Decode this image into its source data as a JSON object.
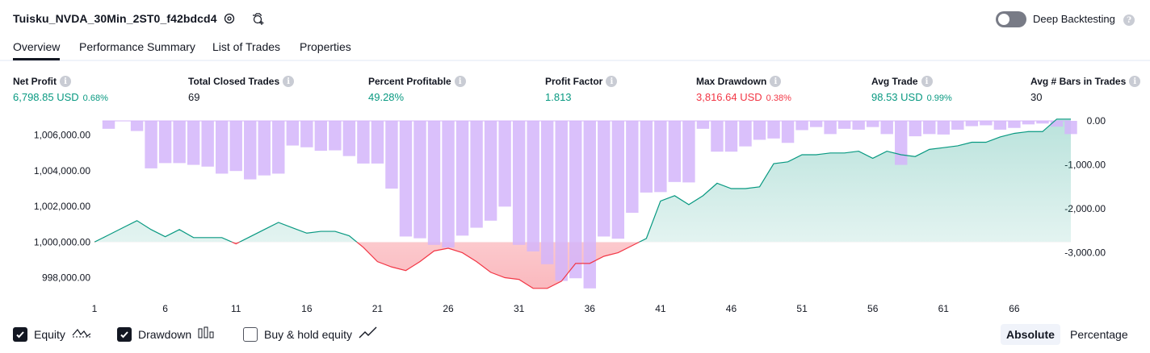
{
  "header": {
    "title": "Tuisku_NVDA_30Min_2ST0_f42bdcd4",
    "settings_icon": "gear-icon",
    "snapshot_icon": "camera-plus-icon",
    "deep_backtesting_label": "Deep Backtesting",
    "deep_backtesting_enabled": false
  },
  "tabs": [
    {
      "label": "Overview",
      "active": true
    },
    {
      "label": "Performance Summary",
      "active": false
    },
    {
      "label": "List of Trades",
      "active": false
    },
    {
      "label": "Properties",
      "active": false
    }
  ],
  "metrics": [
    {
      "label": "Net Profit",
      "value": "6,798.85 USD",
      "pct": "0.68%",
      "color": "#089981"
    },
    {
      "label": "Total Closed Trades",
      "value": "69",
      "pct": "",
      "color": "#131722"
    },
    {
      "label": "Percent Profitable",
      "value": "49.28%",
      "pct": "",
      "color": "#089981"
    },
    {
      "label": "Profit Factor",
      "value": "1.813",
      "pct": "",
      "color": "#089981"
    },
    {
      "label": "Max Drawdown",
      "value": "3,816.64 USD",
      "pct": "0.38%",
      "color": "#f23645"
    },
    {
      "label": "Avg Trade",
      "value": "98.53 USD",
      "pct": "0.99%",
      "color": "#089981"
    },
    {
      "label": "Avg # Bars in Trades",
      "value": "30",
      "pct": "",
      "color": "#131722"
    }
  ],
  "legend": {
    "equity": {
      "label": "Equity",
      "checked": true,
      "icon": "equity-line-icon"
    },
    "drawdown": {
      "label": "Drawdown",
      "checked": true,
      "icon": "drawdown-bars-icon"
    },
    "buy_hold": {
      "label": "Buy & hold equity",
      "checked": false,
      "icon": "buy-hold-line-icon"
    }
  },
  "mode": {
    "absolute_label": "Absolute",
    "percentage_label": "Percentage",
    "selected": "Absolute"
  },
  "chart_data": {
    "type": "line",
    "x_tick_labels": [
      "1",
      "6",
      "11",
      "16",
      "21",
      "26",
      "31",
      "36",
      "41",
      "46",
      "51",
      "56",
      "61",
      "66"
    ],
    "x_ticks": [
      1,
      6,
      11,
      16,
      21,
      26,
      31,
      36,
      41,
      46,
      51,
      56,
      61,
      66
    ],
    "xlim": [
      1,
      70
    ],
    "y_left_tick_labels": [
      "1,006,000.00",
      "1,004,000.00",
      "1,002,000.00",
      "1,000,000.00",
      "998,000.00"
    ],
    "y_left_ticks": [
      1006000,
      1004000,
      1002000,
      1000000,
      998000
    ],
    "ylim_left": [
      997300,
      1006800
    ],
    "y_right_tick_labels": [
      "0.00",
      "-1,000.00",
      "-2,000.00",
      "-3,000.00"
    ],
    "y_right_ticks": [
      0,
      -1000,
      -2000,
      -3000
    ],
    "ylim_right": [
      -3850,
      0
    ],
    "baseline": 1000000,
    "colors": {
      "equity_up": "#089981",
      "equity_down": "#f23645",
      "drawdown": "#d4b5fa"
    },
    "series": [
      {
        "name": "Equity",
        "x": [
          1,
          2,
          3,
          4,
          5,
          6,
          7,
          8,
          9,
          10,
          11,
          12,
          13,
          14,
          15,
          16,
          17,
          18,
          19,
          20,
          21,
          22,
          23,
          24,
          25,
          26,
          27,
          28,
          29,
          30,
          31,
          32,
          33,
          34,
          35,
          36,
          37,
          38,
          39,
          40,
          41,
          42,
          43,
          44,
          45,
          46,
          47,
          48,
          49,
          50,
          51,
          52,
          53,
          54,
          55,
          56,
          57,
          58,
          59,
          60,
          61,
          62,
          63,
          64,
          65,
          66,
          67,
          68,
          69,
          70
        ],
        "values": [
          1000000,
          1000400,
          1000800,
          1001200,
          1000700,
          1000300,
          1000700,
          1000250,
          1000250,
          1000250,
          999900,
          1000300,
          1000700,
          1001100,
          1000800,
          1000500,
          1000600,
          1000600,
          1000350,
          999700,
          998900,
          998600,
          998400,
          998900,
          999500,
          999650,
          999400,
          998900,
          998300,
          998000,
          997900,
          997400,
          997400,
          997800,
          998800,
          998800,
          999200,
          999400,
          999800,
          1000200,
          1002300,
          1002600,
          1002100,
          1002600,
          1003300,
          1003000,
          1003000,
          1003100,
          1004400,
          1004500,
          1004900,
          1004900,
          1005000,
          1005000,
          1005100,
          1004700,
          1005100,
          1004900,
          1004800,
          1005200,
          1005300,
          1005400,
          1005600,
          1005600,
          1005900,
          1006100,
          1006200,
          1006200,
          1006900,
          1006900
        ]
      },
      {
        "name": "Drawdown",
        "x": [
          2,
          3,
          4,
          5,
          6,
          7,
          8,
          9,
          10,
          11,
          12,
          13,
          14,
          15,
          16,
          17,
          18,
          19,
          20,
          21,
          22,
          23,
          24,
          25,
          26,
          27,
          28,
          29,
          30,
          31,
          32,
          33,
          34,
          35,
          36,
          37,
          38,
          39,
          40,
          41,
          42,
          43,
          44,
          45,
          46,
          47,
          48,
          49,
          50,
          51,
          52,
          53,
          54,
          55,
          56,
          57,
          58,
          59,
          60,
          61,
          62,
          63,
          64,
          65,
          66,
          67,
          68,
          69,
          70
        ],
        "values": [
          -180,
          0,
          -230,
          -1080,
          -960,
          -960,
          -1000,
          -1040,
          -1200,
          -1140,
          -1330,
          -1240,
          -1200,
          -560,
          -600,
          -680,
          -670,
          -800,
          -970,
          -970,
          -1540,
          -2630,
          -2670,
          -2820,
          -2880,
          -2610,
          -2430,
          -2270,
          -1950,
          -2820,
          -2970,
          -3260,
          -3640,
          -3580,
          -3810,
          -2630,
          -2680,
          -2090,
          -1630,
          -1620,
          -1390,
          -1400,
          -180,
          -700,
          -700,
          -580,
          -430,
          -400,
          -500,
          -210,
          -140,
          -300,
          -180,
          -200,
          -140,
          -300,
          -1000,
          -350,
          -300,
          -310,
          -200,
          -120,
          -100,
          -200,
          -160,
          -80,
          -60,
          -130,
          -300
        ]
      }
    ]
  }
}
